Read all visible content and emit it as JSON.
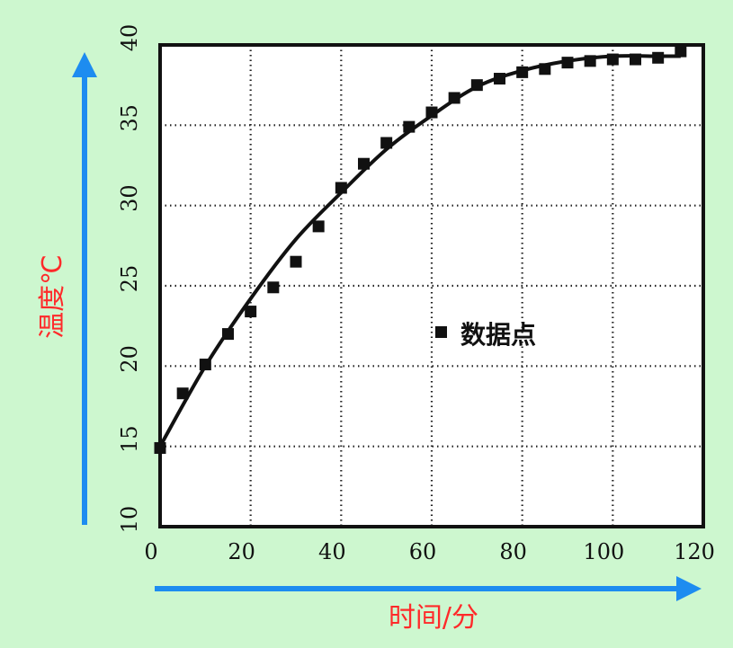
{
  "chart_data": {
    "type": "scatter",
    "xlabel": "时间/分",
    "ylabel": "温度℃",
    "xlim": [
      0,
      120
    ],
    "ylim": [
      10,
      40
    ],
    "x_ticks": [
      0,
      20,
      40,
      60,
      80,
      100,
      120
    ],
    "y_ticks": [
      10,
      15,
      20,
      25,
      30,
      35,
      40
    ],
    "grid": true,
    "grid_style": "dotted",
    "legend": {
      "label": "数据点",
      "placement": "center-right"
    },
    "series": [
      {
        "name": "数据点",
        "type": "scatter",
        "points": [
          [
            0,
            14.9
          ],
          [
            5,
            18.3
          ],
          [
            10,
            20.1
          ],
          [
            15,
            22.0
          ],
          [
            20,
            23.4
          ],
          [
            25,
            24.9
          ],
          [
            30,
            26.5
          ],
          [
            35,
            28.7
          ],
          [
            40,
            31.1
          ],
          [
            45,
            32.6
          ],
          [
            50,
            33.9
          ],
          [
            55,
            34.9
          ],
          [
            60,
            35.8
          ],
          [
            65,
            36.7
          ],
          [
            70,
            37.5
          ],
          [
            75,
            37.9
          ],
          [
            80,
            38.3
          ],
          [
            85,
            38.5
          ],
          [
            90,
            38.9
          ],
          [
            95,
            39.0
          ],
          [
            100,
            39.1
          ],
          [
            105,
            39.1
          ],
          [
            110,
            39.2
          ],
          [
            115,
            39.6
          ]
        ]
      },
      {
        "type": "line",
        "smooth": true,
        "points": [
          [
            0,
            15.0
          ],
          [
            10,
            20.0
          ],
          [
            20,
            24.2
          ],
          [
            30,
            27.9
          ],
          [
            40,
            30.8
          ],
          [
            50,
            33.5
          ],
          [
            60,
            35.6
          ],
          [
            70,
            37.4
          ],
          [
            80,
            38.4
          ],
          [
            90,
            39.0
          ],
          [
            100,
            39.3
          ],
          [
            110,
            39.3
          ],
          [
            115,
            39.3
          ]
        ]
      }
    ]
  }
}
